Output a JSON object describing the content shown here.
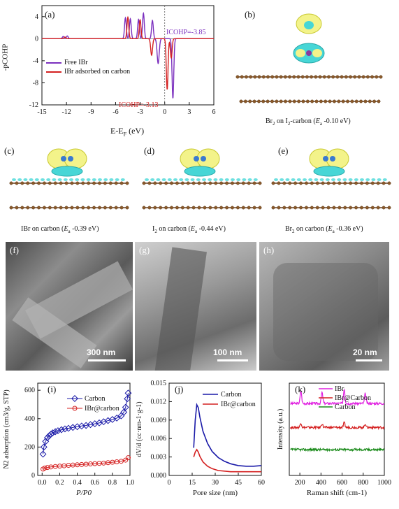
{
  "panel_a": {
    "label": "(a)",
    "ylabel": "-pCOHP",
    "xlabel": "E-E",
    "xlabel_sub": "F",
    "xlabel_unit": " (eV)",
    "xticks": [
      "-15",
      "-12",
      "-9",
      "-6",
      "-3",
      "0",
      "3",
      "6"
    ],
    "yticks": [
      "4",
      "0",
      "-4",
      "-8",
      "-12"
    ],
    "legend": [
      "Free IBr",
      "IBr adsorbed on carbon"
    ],
    "icohp_free": "ICOHP=-3.85",
    "icohp_ads": "ICOHP=-3.13",
    "colors": {
      "free": "#7b2fbe",
      "ads": "#d42020"
    }
  },
  "panel_b": {
    "label": "(b)",
    "caption_pre": "Br",
    "caption_sub1": "2",
    "caption_mid": " on I",
    "caption_sub2": "2",
    "caption_post": "-carbon (",
    "ea": "E",
    "ea_sub": "a",
    "caption_val": " -0.10 eV)"
  },
  "panel_c": {
    "label": "(c)",
    "caption_pre": "IBr on carbon (",
    "ea": "E",
    "ea_sub": "a",
    "caption_val": " -0.39 eV)"
  },
  "panel_d": {
    "label": "(d)",
    "caption_pre": "I",
    "caption_sub": "2",
    "caption_mid": " on carbon (",
    "ea": "E",
    "ea_sub": "a",
    "caption_val": " -0.44 eV)"
  },
  "panel_e": {
    "label": "(e)",
    "caption_pre": "Br",
    "caption_sub": "2",
    "caption_mid": " on carbon (",
    "ea": "E",
    "ea_sub": "a",
    "caption_val": " -0.36 eV)"
  },
  "panel_f": {
    "label": "(f)",
    "scale": "300 nm"
  },
  "panel_g": {
    "label": "(g)",
    "scale": "100 nm"
  },
  "panel_h": {
    "label": "(h)",
    "scale": "20 nm"
  },
  "chart_data": [
    {
      "type": "scatter",
      "panel": "(i)",
      "ylabel": "N2 adsorption (cm3/g, STP)",
      "xlabel": "P/P0",
      "xlim": [
        0,
        1
      ],
      "ylim": [
        0,
        650
      ],
      "xticks": [
        "0.0",
        "0.2",
        "0.4",
        "0.6",
        "0.8",
        "1.0"
      ],
      "yticks": [
        "0",
        "200",
        "400",
        "600"
      ],
      "series": [
        {
          "name": "Carbon",
          "color": "#1a1aa8",
          "x": [
            0.01,
            0.02,
            0.04,
            0.06,
            0.08,
            0.1,
            0.12,
            0.15,
            0.18,
            0.22,
            0.26,
            0.3,
            0.35,
            0.4,
            0.45,
            0.5,
            0.55,
            0.6,
            0.65,
            0.7,
            0.75,
            0.8,
            0.85,
            0.9,
            0.93,
            0.95,
            0.97,
            0.98
          ],
          "y": [
            150,
            200,
            240,
            265,
            280,
            290,
            300,
            308,
            315,
            322,
            328,
            332,
            338,
            343,
            348,
            352,
            358,
            364,
            370,
            378,
            386,
            394,
            404,
            420,
            445,
            480,
            540,
            580
          ]
        },
        {
          "name": "IBr@carbon",
          "color": "#d42020",
          "x": [
            0.01,
            0.03,
            0.06,
            0.1,
            0.15,
            0.2,
            0.25,
            0.3,
            0.35,
            0.4,
            0.45,
            0.5,
            0.55,
            0.6,
            0.65,
            0.7,
            0.75,
            0.8,
            0.85,
            0.9,
            0.95,
            0.98
          ],
          "y": [
            45,
            52,
            56,
            60,
            63,
            66,
            68,
            71,
            73,
            75,
            77,
            79,
            81,
            83,
            85,
            87,
            90,
            93,
            96,
            100,
            108,
            125
          ]
        }
      ]
    },
    {
      "type": "line",
      "panel": "(j)",
      "ylabel": "dV/d (cc·nm-1·g-1)",
      "xlabel": "Pore size (nm)",
      "xlim": [
        0,
        60
      ],
      "ylim": [
        0,
        0.015
      ],
      "xticks": [
        "0",
        "15",
        "30",
        "45",
        "60"
      ],
      "yticks": [
        "0.000",
        "0.003",
        "0.006",
        "0.009",
        "0.012",
        "0.015"
      ],
      "series": [
        {
          "name": "Carbon",
          "color": "#1a1aa8",
          "x": [
            16,
            17,
            18,
            19,
            20,
            22,
            25,
            28,
            32,
            36,
            40,
            45,
            50,
            55,
            60
          ],
          "y": [
            0.0045,
            0.009,
            0.0115,
            0.011,
            0.0095,
            0.0072,
            0.0052,
            0.0039,
            0.0029,
            0.0023,
            0.0019,
            0.0016,
            0.0015,
            0.0015,
            0.0016
          ]
        },
        {
          "name": "IBr@carbon",
          "color": "#d42020",
          "x": [
            16,
            17,
            18,
            19,
            20,
            22,
            25,
            28,
            32,
            36,
            40,
            45,
            50,
            55,
            60
          ],
          "y": [
            0.003,
            0.0038,
            0.0042,
            0.0038,
            0.0031,
            0.0022,
            0.0015,
            0.0011,
            0.0008,
            0.0007,
            0.0006,
            0.0006,
            0.0006,
            0.0006,
            0.0006
          ]
        }
      ]
    },
    {
      "type": "line",
      "panel": "(k)",
      "ylabel": "Intensity (a.u.)",
      "xlabel": "Raman shift (cm-1)",
      "xlim": [
        100,
        1000
      ],
      "xticks": [
        "200",
        "400",
        "600",
        "800",
        "1000"
      ],
      "series": [
        {
          "name": "IBr",
          "color": "#e020e0",
          "baseline": 0.78,
          "peaks": [
            [
              210,
              0.14
            ],
            [
              410,
              0.12
            ],
            [
              620,
              0.16
            ],
            [
              820,
              0.11
            ]
          ]
        },
        {
          "name": "IBr@Carbon",
          "color": "#d42020",
          "baseline": 0.52,
          "peaks": [
            [
              210,
              0.05
            ],
            [
              410,
              0.04
            ],
            [
              620,
              0.05
            ],
            [
              820,
              0.04
            ]
          ]
        },
        {
          "name": "Carbon",
          "color": "#1a8a1a",
          "baseline": 0.28,
          "peaks": []
        }
      ]
    }
  ]
}
